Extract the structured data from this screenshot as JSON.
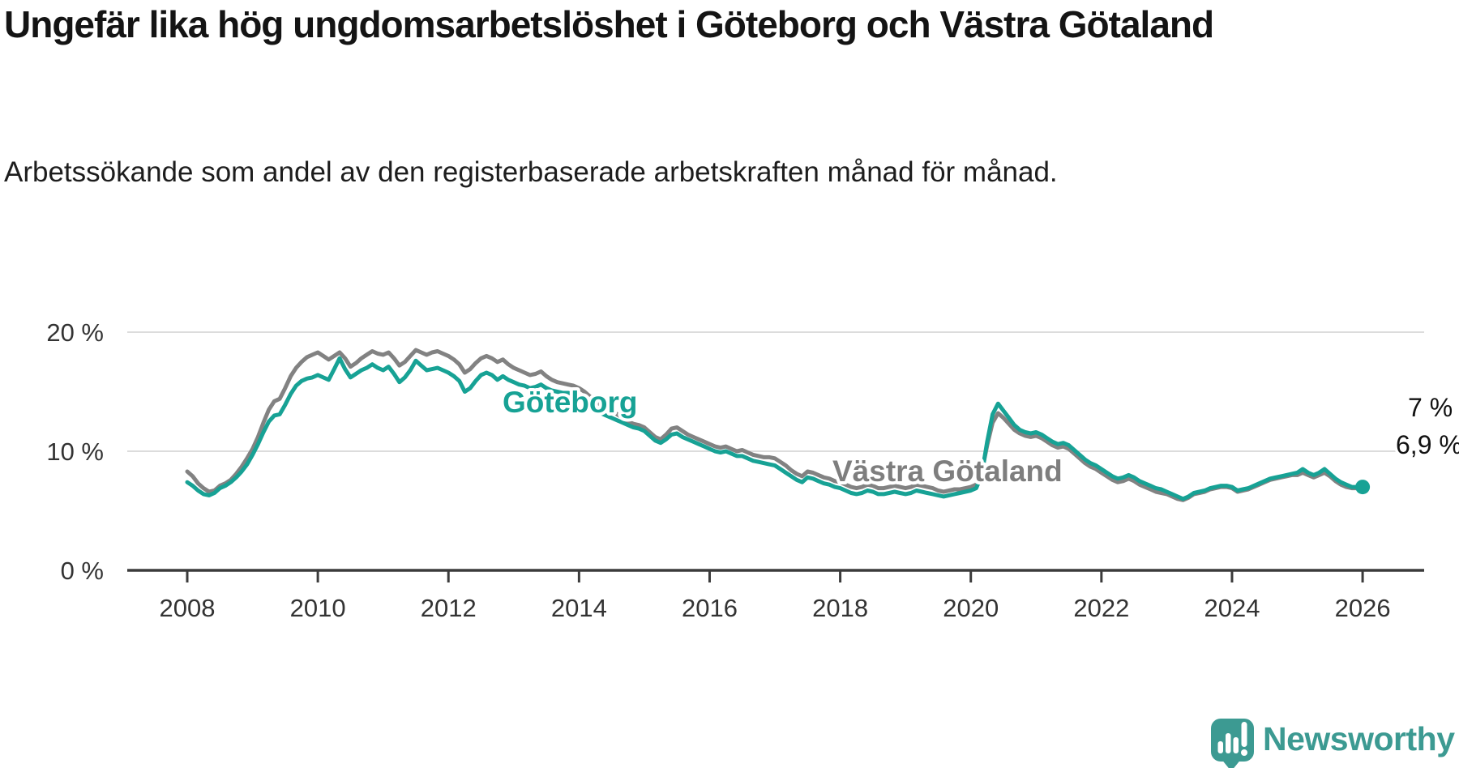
{
  "header": {
    "title": "Ungefär lika hög ungdomsarbetslöshet i Göteborg och Västra Götaland",
    "subtitle": "Arbetssökande som andel av den registerbaserade arbetskraften månad för månad."
  },
  "footer": {
    "brand": "Newsworthy"
  },
  "chart_data": {
    "type": "line",
    "title": "Ungefär lika hög ungdomsarbetslöshet i Göteborg och Västra Götaland",
    "xlabel": "",
    "ylabel": "",
    "unit": "%",
    "frequency": "monthly",
    "start": {
      "year": 2008,
      "month": 1
    },
    "end": {
      "year": 2026,
      "month": 1
    },
    "ylim": [
      0,
      21
    ],
    "grid": "horizontal gridlines at 10 % and 20 %",
    "legend_position": "inline series labels on the lines",
    "x_ticks": [
      2008,
      2010,
      2012,
      2014,
      2016,
      2018,
      2020,
      2022,
      2024,
      2026
    ],
    "y_axis": [
      {
        "label": "0 %",
        "value": 0
      },
      {
        "label": "10 %",
        "value": 10
      },
      {
        "label": "20 %",
        "value": 20
      }
    ],
    "series": [
      {
        "name": "Västra Götaland",
        "color": "#828282",
        "end_label": "6,9 %",
        "end_value": 6.9,
        "values": [
          8.3,
          7.9,
          7.3,
          6.9,
          6.6,
          6.7,
          7.1,
          7.3,
          7.6,
          8.1,
          8.7,
          9.4,
          10.2,
          11.2,
          12.4,
          13.5,
          14.2,
          14.4,
          15.3,
          16.3,
          17.0,
          17.5,
          17.9,
          18.1,
          18.3,
          18.0,
          17.7,
          18.0,
          18.3,
          17.8,
          17.1,
          17.4,
          17.8,
          18.1,
          18.4,
          18.2,
          18.1,
          18.3,
          17.8,
          17.2,
          17.5,
          18.0,
          18.5,
          18.3,
          18.1,
          18.3,
          18.4,
          18.2,
          18.0,
          17.7,
          17.3,
          16.6,
          16.9,
          17.4,
          17.8,
          18.0,
          17.8,
          17.5,
          17.7,
          17.3,
          17.0,
          16.8,
          16.6,
          16.4,
          16.5,
          16.7,
          16.3,
          16.0,
          15.8,
          15.7,
          15.6,
          15.5,
          15.3,
          15.0,
          14.6,
          14.2,
          13.9,
          13.7,
          13.4,
          13.1,
          12.8,
          12.5,
          12.3,
          12.2,
          12.0,
          11.6,
          11.2,
          11.0,
          11.4,
          11.9,
          12.0,
          11.7,
          11.4,
          11.2,
          11.0,
          10.8,
          10.6,
          10.4,
          10.3,
          10.4,
          10.2,
          10.0,
          10.1,
          9.9,
          9.7,
          9.6,
          9.5,
          9.5,
          9.4,
          9.1,
          8.8,
          8.4,
          8.1,
          7.9,
          8.3,
          8.2,
          8.0,
          7.8,
          7.7,
          7.5,
          7.4,
          7.2,
          7.0,
          6.9,
          7.0,
          7.2,
          7.1,
          6.9,
          6.9,
          7.0,
          7.1,
          7.0,
          6.9,
          7.0,
          7.2,
          7.1,
          7.0,
          6.9,
          6.7,
          6.6,
          6.7,
          6.8,
          6.8,
          6.9,
          7.0,
          7.2,
          8.2,
          10.5,
          12.4,
          13.2,
          12.8,
          12.3,
          11.8,
          11.5,
          11.3,
          11.2,
          11.3,
          11.1,
          10.8,
          10.5,
          10.3,
          10.4,
          10.2,
          9.8,
          9.4,
          9.0,
          8.7,
          8.5,
          8.2,
          7.9,
          7.6,
          7.4,
          7.5,
          7.7,
          7.5,
          7.2,
          7.0,
          6.8,
          6.6,
          6.5,
          6.4,
          6.2,
          6.0,
          5.9,
          6.1,
          6.4,
          6.5,
          6.6,
          6.8,
          6.9,
          7.0,
          7.0,
          6.9,
          6.6,
          6.7,
          6.8,
          7.0,
          7.2,
          7.4,
          7.6,
          7.7,
          7.8,
          7.9,
          8.0,
          8.0,
          8.2,
          8.0,
          7.8,
          8.0,
          8.2,
          7.9,
          7.5,
          7.2,
          7.0,
          6.9,
          6.9,
          6.9
        ]
      },
      {
        "name": "Göteborg",
        "color": "#17a295",
        "end_label": "7 %",
        "end_value": 7.0,
        "values": [
          7.4,
          7.1,
          6.7,
          6.4,
          6.3,
          6.5,
          6.9,
          7.1,
          7.4,
          7.8,
          8.3,
          8.9,
          9.7,
          10.6,
          11.6,
          12.5,
          13.0,
          13.1,
          13.9,
          14.8,
          15.5,
          15.9,
          16.1,
          16.2,
          16.4,
          16.2,
          16.0,
          16.9,
          17.8,
          16.9,
          16.2,
          16.5,
          16.8,
          17.0,
          17.3,
          17.0,
          16.8,
          17.1,
          16.5,
          15.8,
          16.2,
          16.8,
          17.6,
          17.2,
          16.8,
          16.9,
          17.0,
          16.8,
          16.6,
          16.3,
          15.9,
          15.0,
          15.3,
          15.9,
          16.4,
          16.6,
          16.4,
          16.0,
          16.3,
          16.0,
          15.8,
          15.6,
          15.5,
          15.3,
          15.4,
          15.6,
          15.3,
          15.1,
          15.0,
          14.9,
          14.9,
          14.8,
          14.6,
          14.3,
          13.9,
          13.5,
          13.2,
          13.0,
          12.8,
          12.6,
          12.4,
          12.2,
          12.0,
          11.9,
          11.7,
          11.3,
          10.9,
          10.7,
          11.0,
          11.4,
          11.5,
          11.2,
          11.0,
          10.8,
          10.6,
          10.4,
          10.2,
          10.0,
          9.9,
          10.0,
          9.8,
          9.6,
          9.6,
          9.4,
          9.2,
          9.1,
          9.0,
          8.9,
          8.8,
          8.5,
          8.2,
          7.9,
          7.6,
          7.4,
          7.8,
          7.7,
          7.5,
          7.3,
          7.2,
          7.0,
          6.9,
          6.7,
          6.5,
          6.4,
          6.5,
          6.7,
          6.6,
          6.4,
          6.4,
          6.5,
          6.6,
          6.5,
          6.4,
          6.5,
          6.7,
          6.6,
          6.5,
          6.4,
          6.3,
          6.2,
          6.3,
          6.4,
          6.5,
          6.6,
          6.7,
          6.9,
          8.0,
          10.8,
          13.1,
          14.0,
          13.4,
          12.8,
          12.2,
          11.8,
          11.6,
          11.5,
          11.6,
          11.4,
          11.1,
          10.8,
          10.6,
          10.7,
          10.5,
          10.1,
          9.7,
          9.3,
          9.0,
          8.8,
          8.5,
          8.2,
          7.9,
          7.7,
          7.8,
          8.0,
          7.8,
          7.5,
          7.3,
          7.1,
          6.9,
          6.8,
          6.6,
          6.4,
          6.2,
          6.0,
          6.2,
          6.5,
          6.6,
          6.7,
          6.9,
          7.0,
          7.1,
          7.1,
          7.0,
          6.7,
          6.8,
          6.9,
          7.1,
          7.3,
          7.5,
          7.7,
          7.8,
          7.9,
          8.0,
          8.1,
          8.2,
          8.5,
          8.2,
          8.0,
          8.2,
          8.5,
          8.1,
          7.7,
          7.4,
          7.2,
          7.0,
          7.0,
          7.0
        ]
      }
    ],
    "colors": {
      "gothenburg_teal": "#17a295",
      "vastra_gotaland_gray": "#828282",
      "gridline": "#dcdcdc",
      "axis": "#3b3b3b",
      "brand_teal": "#3c9a92"
    }
  }
}
